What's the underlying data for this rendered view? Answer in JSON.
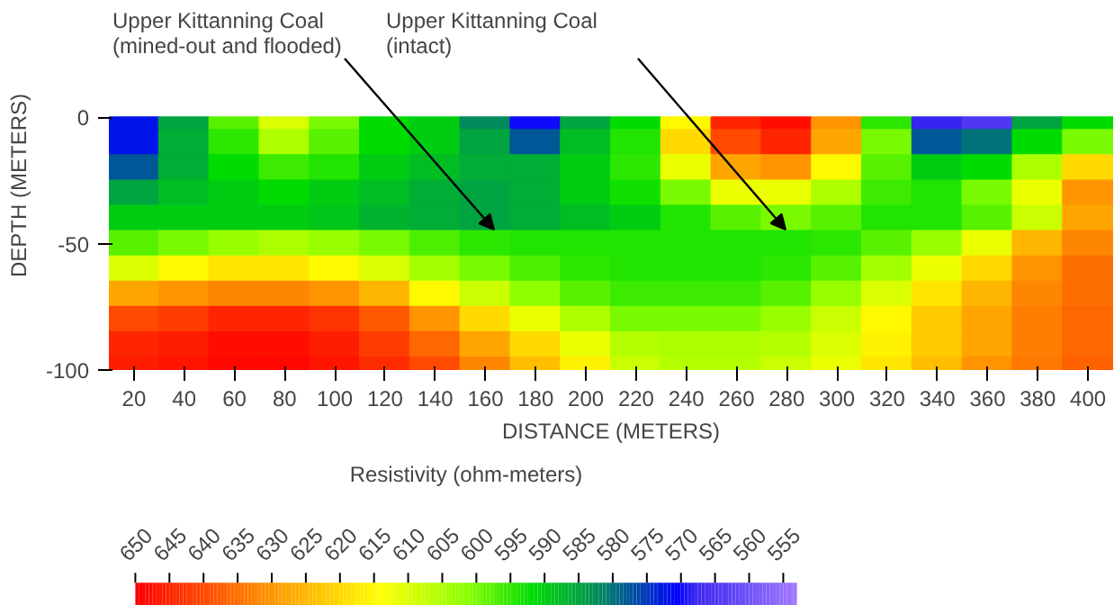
{
  "chart_data": {
    "type": "heatmap",
    "xlabel": "DISTANCE (METERS)",
    "ylabel": "DEPTH (METERS)",
    "clabel": "Resistivity (ohm-meters)",
    "categories": [
      "20",
      "40",
      "60",
      "80",
      "100",
      "120",
      "140",
      "160",
      "180",
      "200",
      "220",
      "240",
      "260",
      "280",
      "300",
      "320",
      "340",
      "360",
      "380",
      "400"
    ],
    "y_categories": [
      "0",
      null,
      null,
      null,
      null,
      "-50",
      null,
      null,
      null,
      null,
      "-100"
    ],
    "cells": [
      [
        572,
        585,
        598,
        610,
        600,
        592,
        590,
        582,
        570,
        585,
        592,
        615,
        645,
        648,
        630,
        595,
        568,
        565,
        585,
        592
      ],
      [
        572,
        586,
        595,
        605,
        598,
        592,
        590,
        585,
        578,
        588,
        594,
        620,
        640,
        645,
        628,
        600,
        578,
        580,
        592,
        600
      ],
      [
        578,
        586,
        592,
        596,
        594,
        590,
        588,
        586,
        586,
        590,
        595,
        612,
        628,
        630,
        615,
        598,
        590,
        592,
        605,
        620
      ],
      [
        585,
        588,
        590,
        592,
        590,
        588,
        586,
        585,
        586,
        590,
        593,
        600,
        612,
        612,
        605,
        596,
        594,
        600,
        612,
        630
      ],
      [
        590,
        590,
        590,
        590,
        589,
        587,
        586,
        585,
        586,
        588,
        590,
        594,
        598,
        600,
        598,
        594,
        594,
        598,
        608,
        628
      ],
      [
        598,
        600,
        603,
        605,
        603,
        600,
        597,
        595,
        594,
        594,
        594,
        594,
        594,
        594,
        595,
        598,
        603,
        612,
        625,
        632
      ],
      [
        610,
        615,
        618,
        618,
        615,
        610,
        604,
        600,
        597,
        595,
        594,
        594,
        594,
        595,
        598,
        604,
        612,
        620,
        630,
        635
      ],
      [
        628,
        630,
        632,
        632,
        630,
        625,
        615,
        608,
        602,
        598,
        596,
        596,
        596,
        598,
        603,
        610,
        618,
        625,
        632,
        635
      ],
      [
        640,
        642,
        645,
        645,
        643,
        638,
        630,
        620,
        612,
        605,
        600,
        600,
        600,
        603,
        608,
        615,
        622,
        628,
        633,
        636
      ],
      [
        645,
        646,
        648,
        648,
        646,
        642,
        636,
        628,
        620,
        612,
        606,
        605,
        605,
        606,
        610,
        616,
        622,
        628,
        633,
        636
      ],
      [
        646,
        647,
        649,
        649,
        647,
        644,
        640,
        632,
        624,
        616,
        608,
        606,
        606,
        608,
        612,
        618,
        624,
        630,
        634,
        637
      ]
    ],
    "clim": [
      650,
      553
    ],
    "cticks": [
      650,
      645,
      640,
      635,
      630,
      625,
      620,
      615,
      610,
      605,
      600,
      595,
      590,
      585,
      580,
      575,
      570,
      565,
      560,
      555
    ],
    "annotations": [
      "Upper Kittanning Coal\n(mined-out and flooded)",
      "Upper Kittanning Coal\n(intact)"
    ]
  }
}
